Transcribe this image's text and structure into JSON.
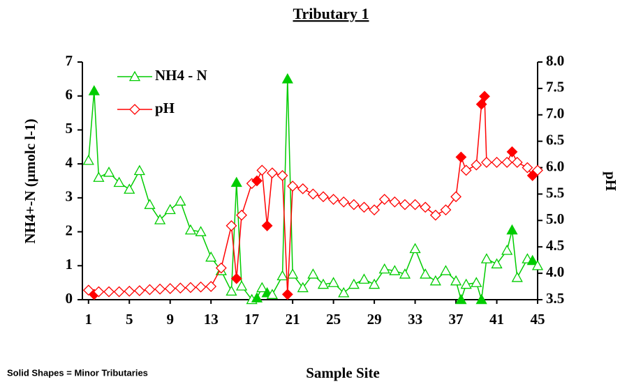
{
  "chart_data": {
    "type": "line",
    "title": "Tributary 1",
    "x_label": "Sample Site",
    "y_label": "NH4+-N (µmolc l-1)",
    "y2_label": "pH",
    "annotation": "Solid Shapes = Minor Tributaries",
    "xlim": [
      0.4,
      45
    ],
    "xticks": [
      1,
      5,
      9,
      13,
      17,
      21,
      25,
      29,
      33,
      37,
      41,
      45
    ],
    "ylim": [
      0,
      7
    ],
    "yticks": [
      0,
      1,
      2,
      3,
      4,
      5,
      6,
      7
    ],
    "y2lim": [
      3.5,
      8.0
    ],
    "y2ticks": [
      3.5,
      {
        "value": 4,
        "label": "4.0"
      },
      4.5,
      {
        "value": 5,
        "label": "5.0"
      },
      5.5,
      {
        "value": 6,
        "label": "6.0"
      },
      6.5,
      {
        "value": 7,
        "label": "7.0"
      },
      7.5,
      {
        "value": 8,
        "label": "8.0"
      }
    ],
    "legend": "upper left",
    "series": [
      {
        "name": "NH4 - N",
        "color": "#00cc00",
        "marker": "triangle",
        "x": [
          1,
          1.55,
          2,
          3,
          4,
          5,
          6,
          7,
          8,
          9,
          10,
          11,
          12,
          13,
          14,
          15,
          15.5,
          16,
          17,
          17.5,
          18,
          18.5,
          19,
          20,
          20.5,
          21,
          22,
          23,
          24,
          25,
          26,
          27,
          28,
          29,
          30,
          31,
          32,
          33,
          34,
          35,
          36,
          37,
          37.5,
          38,
          39,
          39.5,
          40,
          41,
          42,
          42.5,
          43,
          44,
          44.5,
          45
        ],
        "values": [
          4.1,
          6.15,
          3.6,
          3.75,
          3.45,
          3.25,
          3.8,
          2.8,
          2.35,
          2.65,
          2.9,
          2.05,
          2.0,
          1.25,
          0.85,
          0.25,
          3.45,
          0.4,
          0.0,
          0.05,
          0.35,
          0.2,
          0.15,
          0.7,
          6.5,
          0.75,
          0.35,
          0.75,
          0.45,
          0.5,
          0.2,
          0.45,
          0.6,
          0.45,
          0.9,
          0.85,
          0.75,
          1.5,
          0.75,
          0.55,
          0.85,
          0.55,
          0.0,
          0.45,
          0.5,
          0.0,
          1.2,
          1.05,
          1.45,
          2.05,
          0.65,
          1.2,
          1.15,
          1.0
        ],
        "filled": [
          1,
          16,
          19,
          21,
          24,
          42,
          45,
          49,
          52
        ]
      },
      {
        "name": "pH",
        "color": "#ff0000",
        "marker": "diamond",
        "axis": "y2",
        "x": [
          1,
          1.55,
          2,
          3,
          4,
          5,
          6,
          7,
          8,
          9,
          10,
          11,
          12,
          13,
          14,
          15,
          15.5,
          16,
          17,
          17.5,
          18,
          18.5,
          19,
          20,
          20.5,
          21,
          22,
          23,
          24,
          25,
          26,
          27,
          28,
          29,
          30,
          31,
          32,
          33,
          34,
          35,
          36,
          37,
          37.5,
          38,
          39,
          39.5,
          39.8,
          40,
          41,
          42,
          42.5,
          43,
          44,
          44.5,
          45
        ],
        "values": [
          3.68,
          3.6,
          3.65,
          3.65,
          3.65,
          3.66,
          3.67,
          3.69,
          3.7,
          3.71,
          3.72,
          3.73,
          3.74,
          3.75,
          4.1,
          4.9,
          3.9,
          5.1,
          5.7,
          5.75,
          5.95,
          4.9,
          5.9,
          5.85,
          3.6,
          5.65,
          5.6,
          5.5,
          5.45,
          5.4,
          5.35,
          5.3,
          5.25,
          5.2,
          5.4,
          5.35,
          5.3,
          5.3,
          5.25,
          5.1,
          5.2,
          5.45,
          6.2,
          5.95,
          6.05,
          7.2,
          7.35,
          6.1,
          6.1,
          6.1,
          6.3,
          6.1,
          6.0,
          5.85,
          5.95
        ],
        "filled": [
          1,
          16,
          19,
          21,
          24,
          42,
          45,
          46,
          50,
          53
        ]
      }
    ]
  }
}
